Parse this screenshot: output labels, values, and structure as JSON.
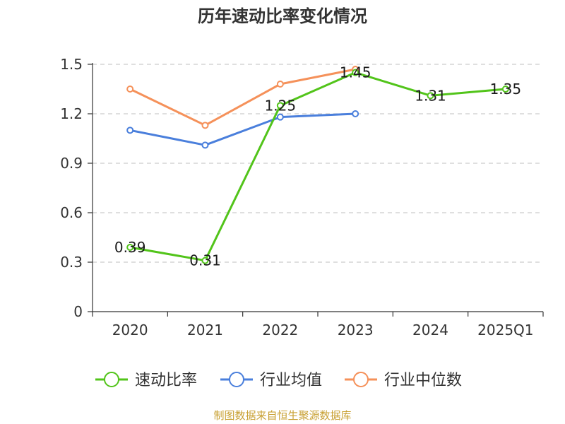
{
  "chart_data": {
    "type": "line",
    "title": "历年速动比率变化情况",
    "categories": [
      "2020",
      "2021",
      "2022",
      "2023",
      "2024",
      "2025Q1"
    ],
    "yticks": [
      "0",
      "0.3",
      "0.6",
      "0.9",
      "1.2",
      "1.5"
    ],
    "ylim": [
      0,
      1.5
    ],
    "series": [
      {
        "name": "速动比率",
        "color": "#52c41a",
        "values": [
          0.39,
          0.31,
          1.25,
          1.45,
          1.31,
          1.35
        ],
        "labels": [
          "0.39",
          "0.31",
          "1.25",
          "1.45",
          "1.31",
          "1.35"
        ]
      },
      {
        "name": "行业均值",
        "color": "#4a7fdc",
        "values": [
          1.1,
          1.01,
          1.18,
          1.2,
          null,
          null
        ]
      },
      {
        "name": "行业中位数",
        "color": "#f5915a",
        "values": [
          1.35,
          1.13,
          1.38,
          1.47,
          null,
          null
        ]
      }
    ],
    "grid": true,
    "legend": "bottom-center"
  },
  "source": "制图数据来自恒生聚源数据库"
}
